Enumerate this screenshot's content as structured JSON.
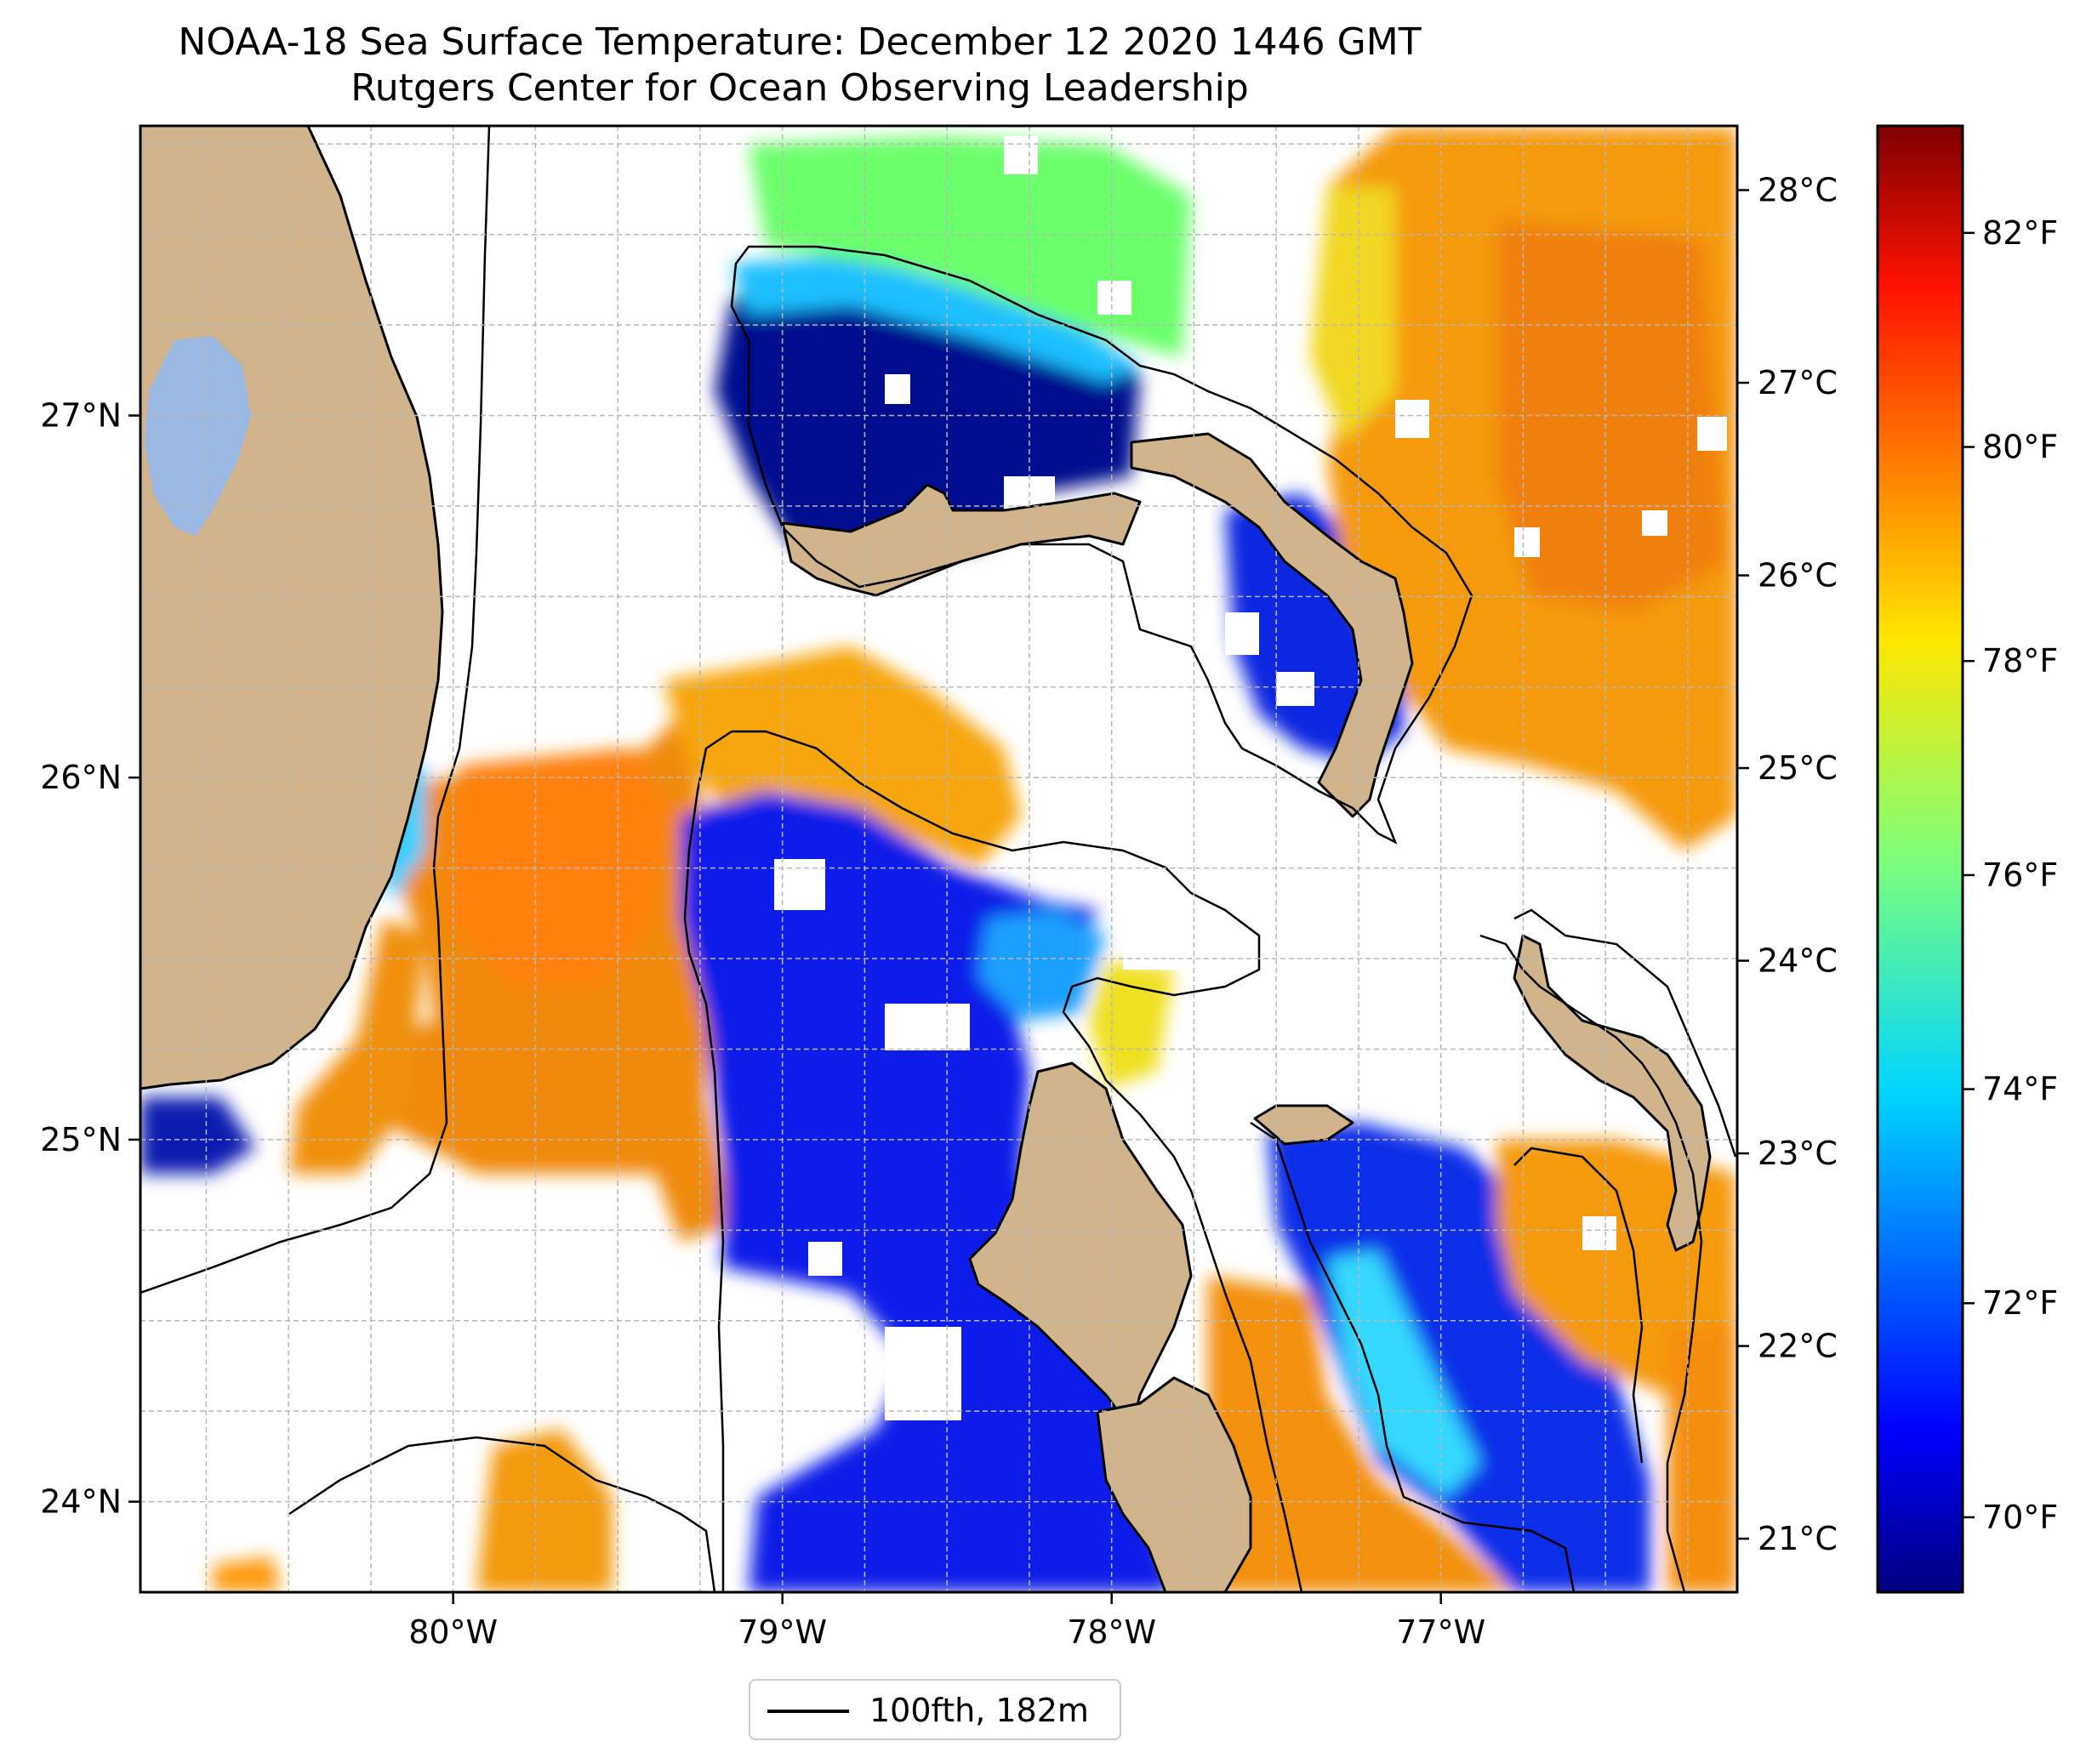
{
  "title": {
    "line1": "NOAA-18 Sea Surface Temperature: December 12 2020 1446 GMT",
    "line2": "Rutgers Center for Ocean Observing Leadership"
  },
  "map": {
    "lon_range": [
      -80.95,
      -76.1
    ],
    "lat_range": [
      23.75,
      27.8
    ],
    "lon_ticks": [
      {
        "value": -80,
        "label": "80°W"
      },
      {
        "value": -79,
        "label": "79°W"
      },
      {
        "value": -78,
        "label": "78°W"
      },
      {
        "value": -77,
        "label": "77°W"
      }
    ],
    "lat_ticks": [
      {
        "value": 24,
        "label": "24°N"
      },
      {
        "value": 25,
        "label": "25°N"
      },
      {
        "value": 26,
        "label": "26°N"
      },
      {
        "value": 27,
        "label": "27°N"
      }
    ],
    "gridlines": true,
    "colors": {
      "land": "#d2b48c",
      "lake": "#9bb8e3",
      "contour": "#000000",
      "grid": "#b0b0b0"
    }
  },
  "colorbar": {
    "colormap": "jet",
    "f_range": [
      69.3,
      83.0
    ],
    "fahrenheit_ticks": [
      {
        "value": 70,
        "label": "70°F"
      },
      {
        "value": 72,
        "label": "72°F"
      },
      {
        "value": 74,
        "label": "74°F"
      },
      {
        "value": 76,
        "label": "76°F"
      },
      {
        "value": 78,
        "label": "78°F"
      },
      {
        "value": 80,
        "label": "80°F"
      },
      {
        "value": 82,
        "label": "82°F"
      }
    ],
    "celsius_ticks": [
      {
        "value": 21,
        "label": "21°C"
      },
      {
        "value": 22,
        "label": "22°C"
      },
      {
        "value": 23,
        "label": "23°C"
      },
      {
        "value": 24,
        "label": "24°C"
      },
      {
        "value": 25,
        "label": "25°C"
      },
      {
        "value": 26,
        "label": "26°C"
      },
      {
        "value": 27,
        "label": "27°C"
      },
      {
        "value": 28,
        "label": "28°C"
      }
    ]
  },
  "legend": {
    "label": "100fth, 182m",
    "location": "below map"
  }
}
